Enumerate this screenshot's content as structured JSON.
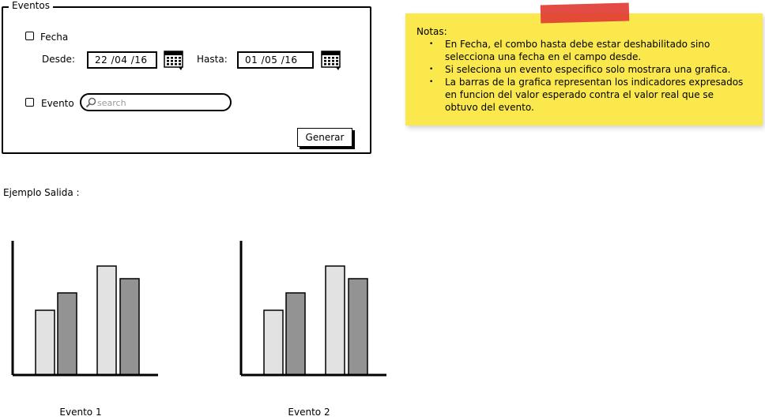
{
  "eventos_panel": {
    "title": "Eventos",
    "fecha": {
      "label": "Fecha",
      "checked": false
    },
    "desde": {
      "label": "Desde:",
      "value": "22 /04 /16"
    },
    "hasta": {
      "label": "Hasta:",
      "value": "01 /05 /16"
    },
    "evento": {
      "label": "Evento",
      "checked": false
    },
    "search": {
      "placeholder": "search",
      "value": ""
    },
    "generar_label": "Generar"
  },
  "notes": {
    "title": "Notas:",
    "items": [
      "En Fecha, el combo hasta debe estar deshabilitado sino selecciona una fecha en el campo desde.",
      "Si seleciona un evento especifico solo mostrara una grafica.",
      "La barras de la grafica representan los indicadores expresados en funcion del valor esperado contra el valor real que se obtuvo del evento."
    ],
    "bg_color": "#fbe84c",
    "tape_color": "#e13d35"
  },
  "output": {
    "label": "Ejemplo Salida :"
  },
  "chart_data": [
    {
      "type": "bar",
      "xlabel": "Evento 1",
      "values": [
        82,
        104,
        138,
        122
      ],
      "colors": [
        "#e2e2e2",
        "#939393",
        "#e2e2e2",
        "#939393"
      ]
    },
    {
      "type": "bar",
      "xlabel": "Evento 2",
      "values": [
        82,
        104,
        138,
        122
      ],
      "colors": [
        "#e2e2e2",
        "#939393",
        "#e2e2e2",
        "#939393"
      ]
    }
  ]
}
